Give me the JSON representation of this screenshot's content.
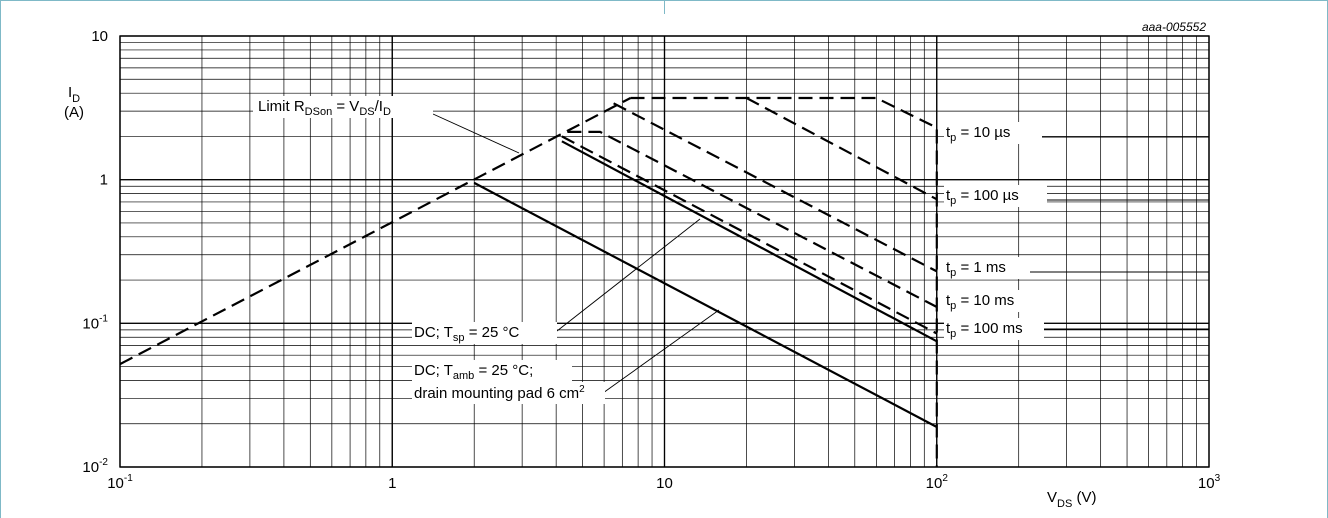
{
  "figure_id": "aaa-005552",
  "chart_data": {
    "type": "line",
    "x_scale": "log",
    "y_scale": "log",
    "xlim": [
      0.1,
      1000
    ],
    "ylim": [
      0.01,
      10
    ],
    "grid": true,
    "x_ticks": [
      {
        "value": 0.1,
        "base": "10",
        "exp": "-1"
      },
      {
        "value": 1,
        "base": "1",
        "exp": ""
      },
      {
        "value": 10,
        "base": "10",
        "exp": ""
      },
      {
        "value": 100,
        "base": "10",
        "exp": "2"
      },
      {
        "value": 1000,
        "base": "10",
        "exp": "3"
      }
    ],
    "y_ticks": [
      {
        "value": 10,
        "base": "10",
        "exp": ""
      },
      {
        "value": 1,
        "base": "1",
        "exp": ""
      },
      {
        "value": 0.1,
        "base": "10",
        "exp": "-1"
      },
      {
        "value": 0.01,
        "base": "10",
        "exp": "-2"
      }
    ],
    "xlabel": {
      "main": "V",
      "sub": "DS",
      "tail": " (V)"
    },
    "ylabel": {
      "main": "I",
      "sub": "D",
      "unit": "(A)"
    },
    "series": [
      {
        "name": "Limit RDSon = VDS/ID",
        "style": "dashed",
        "points": [
          [
            0.1,
            0.052
          ],
          [
            7.5,
            3.7
          ]
        ]
      },
      {
        "name": "tp = 10 µs",
        "style": "dashed",
        "points": [
          [
            7.5,
            3.7
          ],
          [
            60,
            3.7
          ],
          [
            100,
            2.3
          ],
          [
            100,
            0.01
          ]
        ]
      },
      {
        "name": "tp = 100 µs",
        "style": "dashed",
        "points": [
          [
            20,
            3.7
          ],
          [
            100,
            0.73
          ]
        ]
      },
      {
        "name": "tp = 1 ms",
        "style": "dashed",
        "points": [
          [
            6.5,
            3.4
          ],
          [
            100,
            0.23
          ]
        ]
      },
      {
        "name": "tp = 10 ms",
        "style": "dashed",
        "points": [
          [
            4.4,
            2.15
          ],
          [
            5.8,
            2.15
          ],
          [
            100,
            0.13
          ]
        ]
      },
      {
        "name": "tp = 100 ms",
        "style": "dashed",
        "points": [
          [
            4.2,
            2.0
          ],
          [
            100,
            0.085
          ]
        ]
      },
      {
        "name": "DC; Tsp = 25 °C",
        "style": "solid",
        "points": [
          [
            4.2,
            1.85
          ],
          [
            100,
            0.075
          ]
        ]
      },
      {
        "name": "DC; Tamb = 25 °C; drain mounting pad 6 cm2",
        "style": "solid",
        "points": [
          [
            2.0,
            0.95
          ],
          [
            100,
            0.019
          ]
        ]
      }
    ],
    "annotations": {
      "limit": {
        "a": "Limit R",
        "b": "DSon",
        "c": " = V",
        "d": "DS",
        "e": "/I",
        "f": "D"
      },
      "tp10us": {
        "a": "t",
        "b": "p",
        "c": " = 10 µs"
      },
      "tp100us": {
        "a": "t",
        "b": "p",
        "c": " = 100 µs"
      },
      "tp1ms": {
        "a": "t",
        "b": "p",
        "c": " = 1 ms"
      },
      "tp10ms": {
        "a": "t",
        "b": "p",
        "c": " = 10 ms"
      },
      "tp100ms": {
        "a": "t",
        "b": "p",
        "c": " = 100 ms"
      },
      "dcsp": {
        "a": "DC; T",
        "b": "sp",
        "c": " = 25 °C"
      },
      "dcamb1": {
        "a": "DC; T",
        "b": "amb",
        "c": " = 25 °C;"
      },
      "dcamb2": {
        "a": "drain mounting pad 6 cm",
        "b": "2"
      }
    }
  }
}
